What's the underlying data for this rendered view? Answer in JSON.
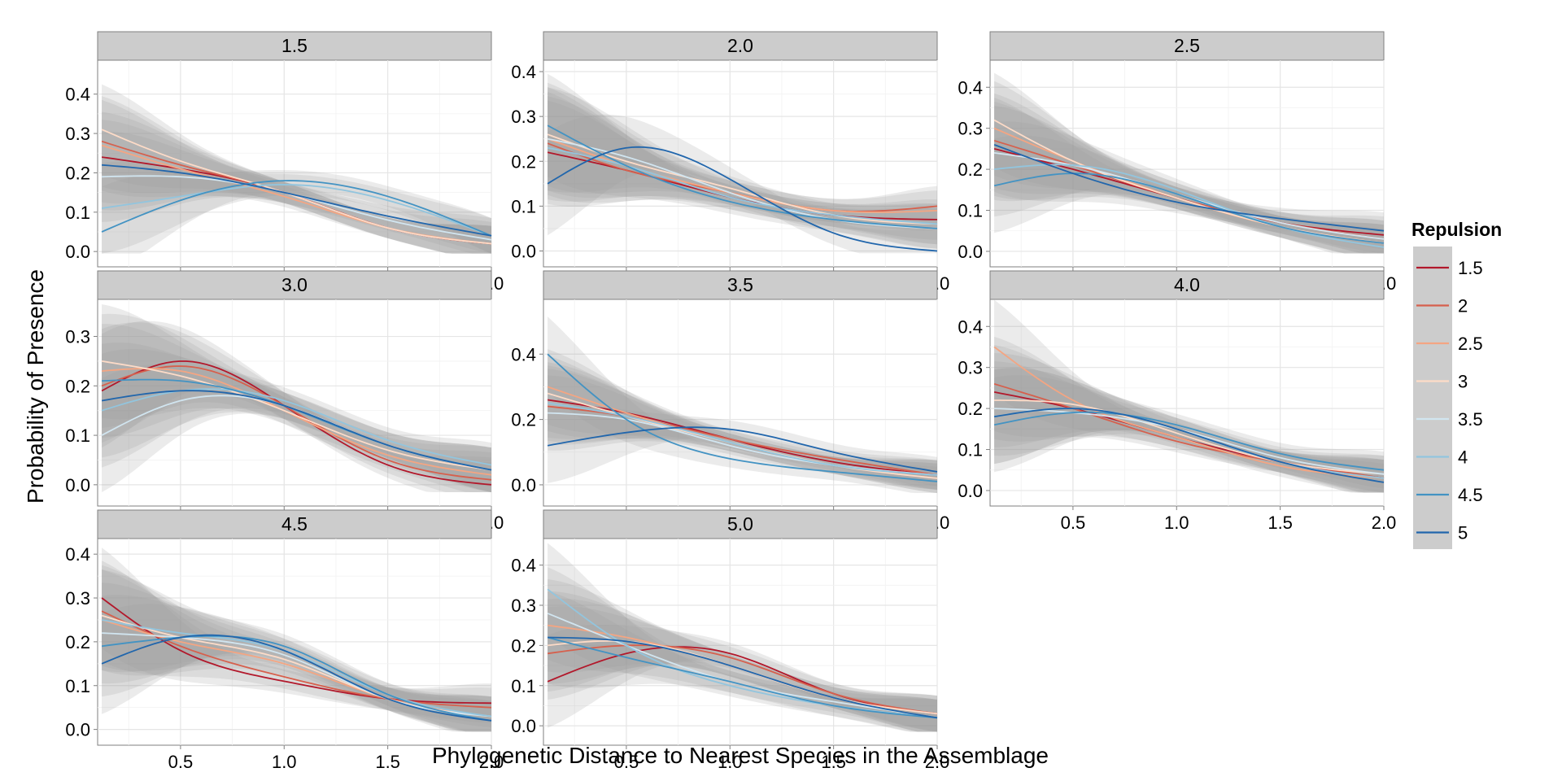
{
  "chart_data": {
    "type": "line",
    "xlabel": "Phylogenetic Distance to Nearest Species in the Assemblage",
    "ylabel": "Probability of Presence",
    "legend": {
      "title": "Repulsion",
      "placement": "right"
    },
    "xlim": [
      0.1,
      2.0
    ],
    "xticks": [
      "0.5",
      "1.0",
      "1.5",
      "2.0"
    ],
    "grid": true,
    "series_styles": [
      {
        "name": "1.5",
        "color": "#b2182b"
      },
      {
        "name": "2",
        "color": "#d6604d"
      },
      {
        "name": "2.5",
        "color": "#f4a582"
      },
      {
        "name": "3",
        "color": "#fddbc7"
      },
      {
        "name": "3.5",
        "color": "#d1e5f0"
      },
      {
        "name": "4",
        "color": "#92c5de"
      },
      {
        "name": "4.5",
        "color": "#4393c3"
      },
      {
        "name": "5",
        "color": "#2166ac"
      }
    ],
    "x": [
      0.12,
      0.5,
      1.0,
      1.5,
      2.0
    ],
    "panels": [
      {
        "title": "1.5",
        "ylim": [
          -0.01,
          0.48
        ],
        "yticks": [
          "0.0",
          "0.1",
          "0.2",
          "0.3",
          "0.4"
        ],
        "series": [
          {
            "name": "1.5",
            "values": [
              0.24,
              0.21,
              0.15,
              0.06,
              0.02
            ]
          },
          {
            "name": "2",
            "values": [
              0.28,
              0.22,
              0.15,
              0.06,
              0.02
            ]
          },
          {
            "name": "2.5",
            "values": [
              0.27,
              0.21,
              0.14,
              0.06,
              0.02
            ]
          },
          {
            "name": "3",
            "values": [
              0.31,
              0.23,
              0.15,
              0.06,
              0.02
            ]
          },
          {
            "name": "3.5",
            "values": [
              0.19,
              0.19,
              0.15,
              0.08,
              0.03
            ]
          },
          {
            "name": "4",
            "values": [
              0.11,
              0.14,
              0.17,
              0.13,
              0.04
            ]
          },
          {
            "name": "4.5",
            "values": [
              0.05,
              0.13,
              0.18,
              0.14,
              0.04
            ]
          },
          {
            "name": "5",
            "values": [
              0.22,
              0.2,
              0.15,
              0.09,
              0.04
            ]
          }
        ]
      },
      {
        "title": "2.0",
        "ylim": [
          -0.01,
          0.42
        ],
        "yticks": [
          "0.0",
          "0.1",
          "0.2",
          "0.3",
          "0.4"
        ],
        "series": [
          {
            "name": "1.5",
            "values": [
              0.22,
              0.18,
              0.12,
              0.08,
              0.07
            ]
          },
          {
            "name": "2",
            "values": [
              0.24,
              0.18,
              0.13,
              0.09,
              0.1
            ]
          },
          {
            "name": "2.5",
            "values": [
              0.25,
              0.19,
              0.13,
              0.09,
              0.09
            ]
          },
          {
            "name": "3",
            "values": [
              0.26,
              0.2,
              0.14,
              0.08,
              0.06
            ]
          },
          {
            "name": "3.5",
            "values": [
              0.25,
              0.21,
              0.13,
              0.07,
              0.05
            ]
          },
          {
            "name": "4",
            "values": [
              0.23,
              0.19,
              0.12,
              0.08,
              0.06
            ]
          },
          {
            "name": "4.5",
            "values": [
              0.28,
              0.19,
              0.11,
              0.07,
              0.05
            ]
          },
          {
            "name": "5",
            "values": [
              0.15,
              0.23,
              0.16,
              0.04,
              0.0
            ]
          }
        ]
      },
      {
        "title": "2.5",
        "ylim": [
          -0.01,
          0.46
        ],
        "yticks": [
          "0.0",
          "0.1",
          "0.2",
          "0.3",
          "0.4"
        ],
        "series": [
          {
            "name": "1.5",
            "values": [
              0.25,
              0.2,
              0.13,
              0.07,
              0.04
            ]
          },
          {
            "name": "2",
            "values": [
              0.27,
              0.21,
              0.13,
              0.07,
              0.03
            ]
          },
          {
            "name": "2.5",
            "values": [
              0.3,
              0.22,
              0.13,
              0.06,
              0.02
            ]
          },
          {
            "name": "3",
            "values": [
              0.32,
              0.22,
              0.13,
              0.06,
              0.02
            ]
          },
          {
            "name": "3.5",
            "values": [
              0.24,
              0.21,
              0.14,
              0.07,
              0.03
            ]
          },
          {
            "name": "4",
            "values": [
              0.2,
              0.21,
              0.15,
              0.06,
              0.01
            ]
          },
          {
            "name": "4.5",
            "values": [
              0.16,
              0.19,
              0.14,
              0.06,
              0.02
            ]
          },
          {
            "name": "5",
            "values": [
              0.26,
              0.19,
              0.12,
              0.08,
              0.05
            ]
          }
        ]
      },
      {
        "title": "3.0",
        "ylim": [
          -0.02,
          0.37
        ],
        "yticks": [
          "0.0",
          "0.1",
          "0.2",
          "0.3"
        ],
        "series": [
          {
            "name": "1.5",
            "values": [
              0.19,
              0.25,
              0.16,
              0.04,
              0.0
            ]
          },
          {
            "name": "2",
            "values": [
              0.2,
              0.24,
              0.16,
              0.05,
              0.01
            ]
          },
          {
            "name": "2.5",
            "values": [
              0.23,
              0.23,
              0.15,
              0.06,
              0.02
            ]
          },
          {
            "name": "3",
            "values": [
              0.25,
              0.22,
              0.15,
              0.07,
              0.03
            ]
          },
          {
            "name": "3.5",
            "values": [
              0.1,
              0.17,
              0.16,
              0.08,
              0.03
            ]
          },
          {
            "name": "4",
            "values": [
              0.15,
              0.19,
              0.17,
              0.09,
              0.04
            ]
          },
          {
            "name": "4.5",
            "values": [
              0.21,
              0.21,
              0.16,
              0.08,
              0.03
            ]
          },
          {
            "name": "5",
            "values": [
              0.17,
              0.19,
              0.16,
              0.08,
              0.03
            ]
          }
        ]
      },
      {
        "title": "3.5",
        "ylim": [
          -0.03,
          0.56
        ],
        "yticks": [
          "0.0",
          "0.2",
          "0.4"
        ],
        "series": [
          {
            "name": "1.5",
            "values": [
              0.26,
              0.22,
              0.14,
              0.07,
              0.03
            ]
          },
          {
            "name": "2",
            "values": [
              0.24,
              0.21,
              0.14,
              0.08,
              0.03
            ]
          },
          {
            "name": "2.5",
            "values": [
              0.3,
              0.22,
              0.13,
              0.06,
              0.02
            ]
          },
          {
            "name": "3",
            "values": [
              0.28,
              0.21,
              0.13,
              0.06,
              0.02
            ]
          },
          {
            "name": "3.5",
            "values": [
              0.22,
              0.2,
              0.12,
              0.06,
              0.03
            ]
          },
          {
            "name": "4",
            "values": [
              0.25,
              0.21,
              0.13,
              0.06,
              0.03
            ]
          },
          {
            "name": "4.5",
            "values": [
              0.4,
              0.2,
              0.08,
              0.04,
              0.01
            ]
          },
          {
            "name": "5",
            "values": [
              0.12,
              0.16,
              0.17,
              0.1,
              0.04
            ]
          }
        ]
      },
      {
        "title": "4.0",
        "ylim": [
          -0.01,
          0.46
        ],
        "yticks": [
          "0.0",
          "0.1",
          "0.2",
          "0.3",
          "0.4"
        ],
        "series": [
          {
            "name": "1.5",
            "values": [
              0.24,
              0.2,
              0.13,
              0.07,
              0.03
            ]
          },
          {
            "name": "2",
            "values": [
              0.26,
              0.2,
              0.12,
              0.07,
              0.03
            ]
          },
          {
            "name": "2.5",
            "values": [
              0.35,
              0.22,
              0.13,
              0.06,
              0.03
            ]
          },
          {
            "name": "3",
            "values": [
              0.22,
              0.21,
              0.14,
              0.07,
              0.04
            ]
          },
          {
            "name": "3.5",
            "values": [
              0.2,
              0.19,
              0.15,
              0.08,
              0.04
            ]
          },
          {
            "name": "4",
            "values": [
              0.18,
              0.2,
              0.15,
              0.07,
              0.03
            ]
          },
          {
            "name": "4.5",
            "values": [
              0.16,
              0.19,
              0.16,
              0.09,
              0.05
            ]
          },
          {
            "name": "5",
            "values": [
              0.18,
              0.2,
              0.15,
              0.07,
              0.02
            ]
          }
        ]
      },
      {
        "title": "4.5",
        "ylim": [
          -0.01,
          0.43
        ],
        "yticks": [
          "0.0",
          "0.1",
          "0.2",
          "0.3",
          "0.4"
        ],
        "series": [
          {
            "name": "1.5",
            "values": [
              0.3,
              0.18,
              0.11,
              0.07,
              0.06
            ]
          },
          {
            "name": "2",
            "values": [
              0.27,
              0.19,
              0.12,
              0.07,
              0.05
            ]
          },
          {
            "name": "2.5",
            "values": [
              0.25,
              0.2,
              0.15,
              0.07,
              0.03
            ]
          },
          {
            "name": "3",
            "values": [
              0.26,
              0.21,
              0.16,
              0.07,
              0.03
            ]
          },
          {
            "name": "3.5",
            "values": [
              0.22,
              0.21,
              0.17,
              0.07,
              0.03
            ]
          },
          {
            "name": "4",
            "values": [
              0.25,
              0.22,
              0.18,
              0.08,
              0.03
            ]
          },
          {
            "name": "4.5",
            "values": [
              0.19,
              0.21,
              0.19,
              0.08,
              0.02
            ]
          },
          {
            "name": "5",
            "values": [
              0.15,
              0.21,
              0.18,
              0.07,
              0.02
            ]
          }
        ]
      },
      {
        "title": "5.0",
        "ylim": [
          -0.02,
          0.46
        ],
        "yticks": [
          "0.0",
          "0.1",
          "0.2",
          "0.3",
          "0.4"
        ],
        "series": [
          {
            "name": "1.5",
            "values": [
              0.11,
              0.18,
              0.18,
              0.08,
              0.03
            ]
          },
          {
            "name": "2",
            "values": [
              0.18,
              0.2,
              0.17,
              0.08,
              0.03
            ]
          },
          {
            "name": "2.5",
            "values": [
              0.25,
              0.22,
              0.15,
              0.07,
              0.02
            ]
          },
          {
            "name": "3",
            "values": [
              0.2,
              0.21,
              0.15,
              0.07,
              0.03
            ]
          },
          {
            "name": "3.5",
            "values": [
              0.28,
              0.2,
              0.11,
              0.06,
              0.02
            ]
          },
          {
            "name": "4",
            "values": [
              0.34,
              0.2,
              0.1,
              0.05,
              0.02
            ]
          },
          {
            "name": "4.5",
            "values": [
              0.22,
              0.17,
              0.11,
              0.05,
              0.02
            ]
          },
          {
            "name": "5",
            "values": [
              0.22,
              0.21,
              0.15,
              0.07,
              0.02
            ]
          }
        ]
      }
    ]
  }
}
